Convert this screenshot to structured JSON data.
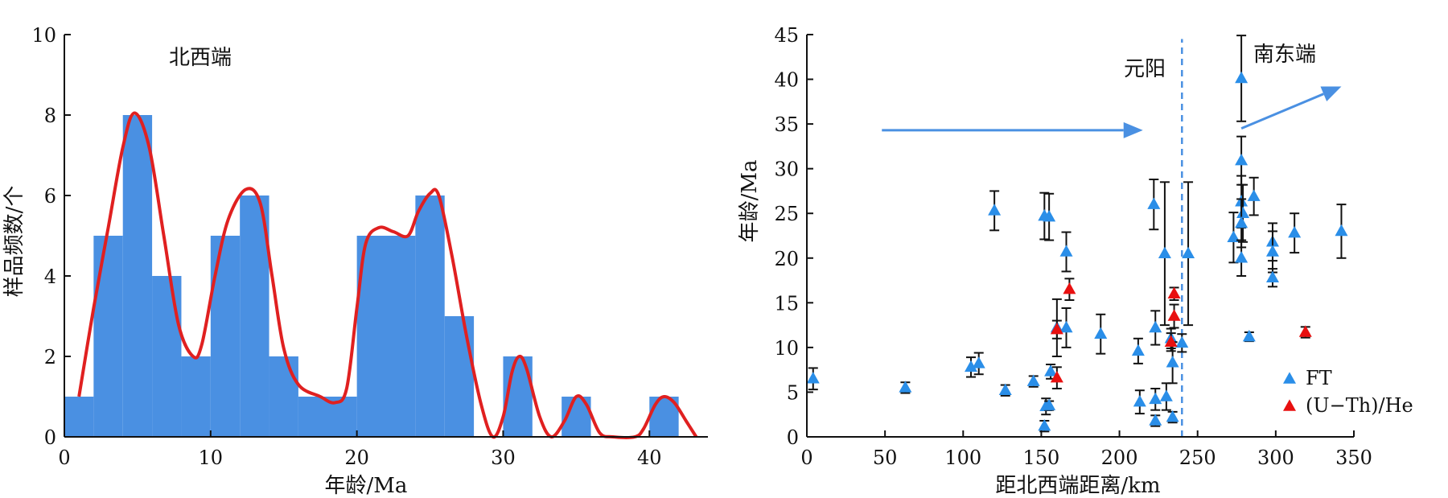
{
  "colors": {
    "bar": "#4a90e2",
    "curve": "#e02020",
    "ft": "#2a8ee8",
    "uthhe": "#e81010",
    "arrow": "#4a90e2",
    "axis": "#111111"
  },
  "chart_data": [
    {
      "type": "bar",
      "xlabel": "年龄/Ma",
      "ylabel": "样品频数/个",
      "xlim": [
        0,
        44
      ],
      "ylim": [
        0,
        10
      ],
      "xticks": [
        "0",
        "10",
        "20",
        "30",
        "40"
      ],
      "yticks": [
        "0",
        "2",
        "4",
        "6",
        "8",
        "10"
      ],
      "bins": [
        {
          "x0": 0,
          "x1": 2,
          "value": 1
        },
        {
          "x0": 2,
          "x1": 4,
          "value": 5
        },
        {
          "x0": 4,
          "x1": 6,
          "value": 8
        },
        {
          "x0": 6,
          "x1": 8,
          "value": 4
        },
        {
          "x0": 8,
          "x1": 10,
          "value": 2
        },
        {
          "x0": 10,
          "x1": 12,
          "value": 5
        },
        {
          "x0": 12,
          "x1": 14,
          "value": 6
        },
        {
          "x0": 14,
          "x1": 16,
          "value": 2
        },
        {
          "x0": 16,
          "x1": 20,
          "value": 1
        },
        {
          "x0": 20,
          "x1": 24,
          "value": 5
        },
        {
          "x0": 24,
          "x1": 26,
          "value": 6
        },
        {
          "x0": 26,
          "x1": 28,
          "value": 3
        },
        {
          "x0": 30,
          "x1": 32,
          "value": 2
        },
        {
          "x0": 34,
          "x1": 36,
          "value": 1
        },
        {
          "x0": 40,
          "x1": 42,
          "value": 1
        }
      ],
      "curve": [
        [
          1,
          1
        ],
        [
          2,
          3.2
        ],
        [
          3,
          5.2
        ],
        [
          4,
          7.2
        ],
        [
          4.8,
          8.05
        ],
        [
          5.8,
          7.2
        ],
        [
          6.8,
          5.0
        ],
        [
          7.8,
          2.8
        ],
        [
          8.8,
          2.0
        ],
        [
          9.4,
          2.3
        ],
        [
          10.3,
          4.0
        ],
        [
          11.2,
          5.4
        ],
        [
          12.4,
          6.15
        ],
        [
          13.4,
          5.8
        ],
        [
          14.2,
          4.0
        ],
        [
          15.0,
          2.2
        ],
        [
          16.0,
          1.3
        ],
        [
          17.5,
          1.0
        ],
        [
          18.5,
          0.85
        ],
        [
          19.3,
          1.2
        ],
        [
          20.0,
          3.2
        ],
        [
          20.6,
          4.8
        ],
        [
          21.5,
          5.2
        ],
        [
          22.5,
          5.1
        ],
        [
          23.5,
          5.0
        ],
        [
          24.2,
          5.6
        ],
        [
          25.0,
          6.05
        ],
        [
          25.6,
          6.0
        ],
        [
          26.5,
          4.5
        ],
        [
          27.5,
          2.5
        ],
        [
          28.5,
          0.8
        ],
        [
          29.3,
          0.0
        ],
        [
          30.0,
          0.5
        ],
        [
          30.6,
          1.6
        ],
        [
          31.1,
          2.0
        ],
        [
          31.6,
          1.7
        ],
        [
          32.5,
          0.5
        ],
        [
          33.3,
          0.0
        ],
        [
          34.2,
          0.4
        ],
        [
          35.0,
          1.0
        ],
        [
          35.7,
          0.8
        ],
        [
          36.6,
          0.1
        ],
        [
          37.5,
          0.0
        ],
        [
          39.0,
          0.0
        ],
        [
          39.6,
          0.2
        ],
        [
          40.4,
          0.8
        ],
        [
          41.0,
          1.0
        ],
        [
          41.7,
          0.85
        ],
        [
          42.5,
          0.4
        ],
        [
          43.2,
          0.0
        ]
      ]
    },
    {
      "type": "scatter",
      "xlabel": "距北西端距离/km",
      "ylabel": "年龄/Ma",
      "xlim": [
        0,
        350
      ],
      "ylim": [
        0,
        45
      ],
      "xticks": [
        "0",
        "50",
        "100",
        "150",
        "200",
        "250",
        "300",
        "350"
      ],
      "yticks": [
        "0",
        "5",
        "10",
        "15",
        "20",
        "25",
        "30",
        "35",
        "40",
        "45"
      ],
      "annotations": {
        "nw_end": "北西端",
        "yuanyang": "元阳",
        "se_end": "南东端"
      },
      "arrows": [
        {
          "from": [
            48,
            34.3
          ],
          "to": [
            215,
            34.3
          ]
        },
        {
          "from": [
            278,
            34.5
          ],
          "to": [
            342,
            39.2
          ]
        }
      ],
      "dashed_vline_x": 240,
      "legend": {
        "position": "bottom-right",
        "items": [
          "FT",
          "(U−Th)/He"
        ]
      },
      "series": [
        {
          "name": "FT",
          "points": [
            [
              4,
              6.5,
              1.2
            ],
            [
              63,
              5.5,
              0.6
            ],
            [
              105,
              7.8,
              1.1
            ],
            [
              110,
              8.2,
              1.2
            ],
            [
              120,
              25.3,
              2.2
            ],
            [
              127,
              5.2,
              0.6
            ],
            [
              145,
              6.2,
              0.6
            ],
            [
              152,
              1.2,
              0.6
            ],
            [
              152,
              24.7,
              2.6
            ],
            [
              153,
              3.4,
              0.9
            ],
            [
              155,
              24.6,
              2.6
            ],
            [
              155,
              3.5,
              0.5
            ],
            [
              156,
              7.3,
              0.8
            ],
            [
              160,
              12.2,
              3.2
            ],
            [
              166,
              20.7,
              2.2
            ],
            [
              166,
              12.2,
              2.2
            ],
            [
              188,
              11.5,
              2.2
            ],
            [
              212,
              9.6,
              1.4
            ],
            [
              213,
              3.9,
              1.3
            ],
            [
              222,
              26.0,
              2.8
            ],
            [
              223,
              12.2,
              1.9
            ],
            [
              223,
              4.2,
              1.2
            ],
            [
              223,
              1.8,
              0.6
            ],
            [
              229,
              20.5,
              8.0
            ],
            [
              230,
              4.5,
              1.5
            ],
            [
              233,
              11.0,
              1.1
            ],
            [
              234,
              8.3,
              2.3
            ],
            [
              234,
              2.2,
              0.6
            ],
            [
              240,
              10.5,
              1.0
            ],
            [
              244,
              20.5,
              8.0
            ],
            [
              273,
              22.3,
              2.8
            ],
            [
              278,
              40.1,
              4.8
            ],
            [
              278,
              30.9,
              2.7
            ],
            [
              278,
              26.3,
              2.9
            ],
            [
              279,
              25.0,
              3.2
            ],
            [
              278,
              23.9,
              2.7
            ],
            [
              278,
              20.0,
              2.0
            ],
            [
              283,
              11.2,
              0.5
            ],
            [
              286,
              26.9,
              2.1
            ],
            [
              298,
              21.8,
              2.1
            ],
            [
              298,
              20.7,
              2.3
            ],
            [
              298,
              17.8,
              1.0
            ],
            [
              312,
              22.8,
              2.2
            ],
            [
              342,
              23.0,
              3.0
            ]
          ]
        },
        {
          "name": "(U−Th)/He",
          "points": [
            [
              160,
              12.0,
              1.0
            ],
            [
              160,
              6.6,
              1.2
            ],
            [
              168,
              16.5,
              1.2
            ],
            [
              233,
              10.6,
              1.0
            ],
            [
              235,
              16.0,
              0.7
            ],
            [
              235,
              13.5,
              1.3
            ],
            [
              319,
              11.7,
              0.6
            ]
          ]
        }
      ]
    }
  ]
}
